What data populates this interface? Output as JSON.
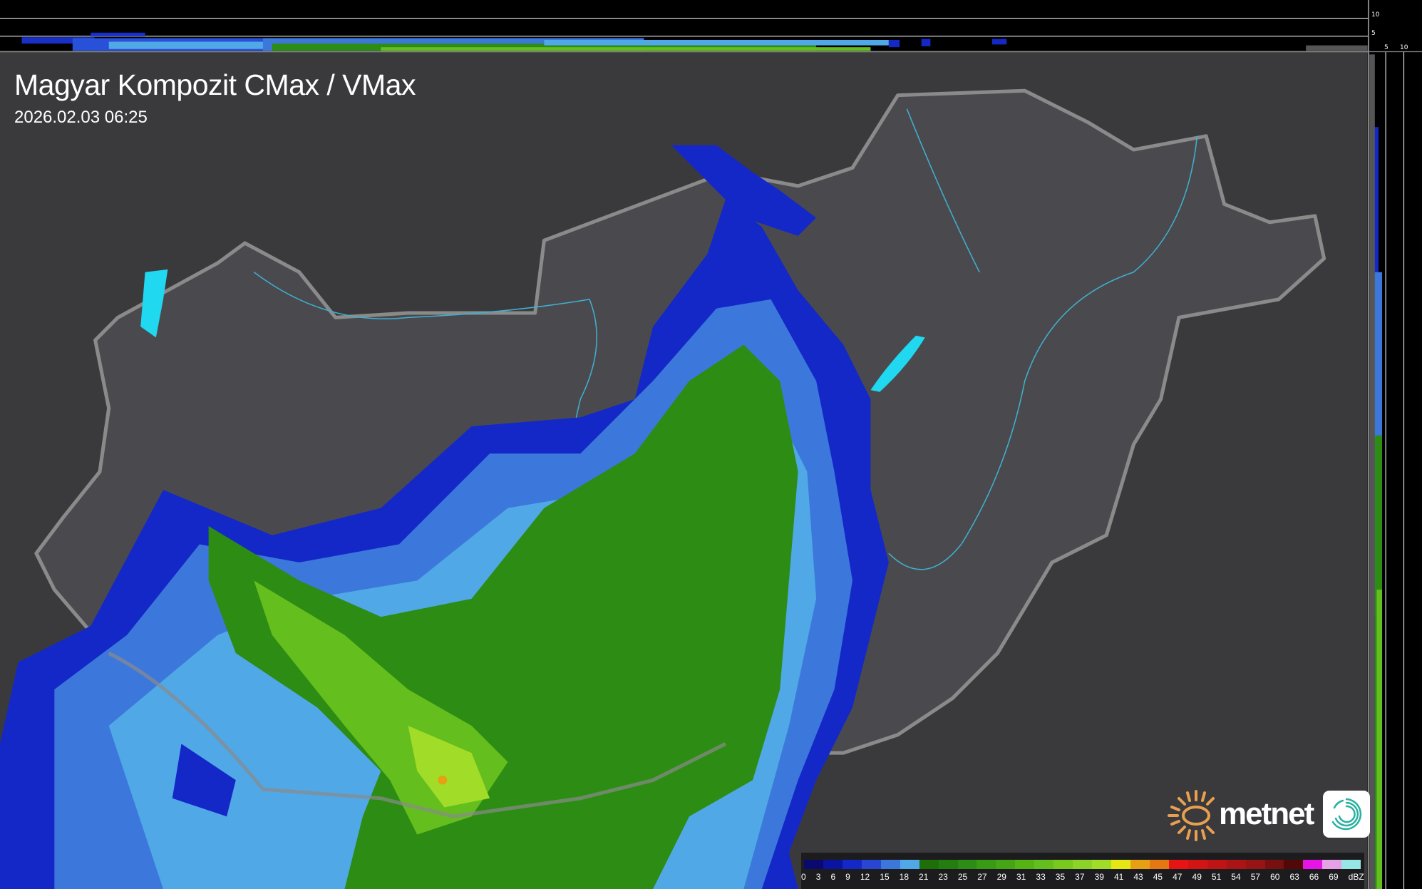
{
  "title": "Magyar Kompozit CMax / VMax",
  "timestamp": "2026.02.03 06:25",
  "top_profile": {
    "height_labels": [
      "10",
      "5"
    ]
  },
  "side_profile": {
    "height_labels": [
      "5",
      "10"
    ]
  },
  "logo": {
    "brand": "metnet",
    "icon": "swirl-app-icon"
  },
  "legend": {
    "unit": "dBZ",
    "labels": [
      "0",
      "3",
      "6",
      "9",
      "12",
      "15",
      "18",
      "21",
      "23",
      "25",
      "27",
      "29",
      "31",
      "33",
      "35",
      "37",
      "39",
      "41",
      "43",
      "45",
      "47",
      "49",
      "51",
      "54",
      "57",
      "60",
      "63",
      "66",
      "69"
    ],
    "colors": [
      "#0a0a6e",
      "#0a14a0",
      "#1428c8",
      "#2846d2",
      "#3c78dc",
      "#50a8e6",
      "#1e6e0a",
      "#237d0f",
      "#2d8c14",
      "#379b14",
      "#46a514",
      "#55b414",
      "#64be1e",
      "#78c81e",
      "#8cd228",
      "#a0dc28",
      "#e6e614",
      "#e6a014",
      "#e67814",
      "#e61414",
      "#d21414",
      "#be1414",
      "#aa1414",
      "#961414",
      "#781010",
      "#500808",
      "#e614e6",
      "#e6a0e6",
      "#96e6e6"
    ]
  },
  "colors": {
    "background": "#38383b",
    "border": "#8a8a8a",
    "rivers": "#3fb0d0",
    "lakes": "#20d8f0"
  }
}
